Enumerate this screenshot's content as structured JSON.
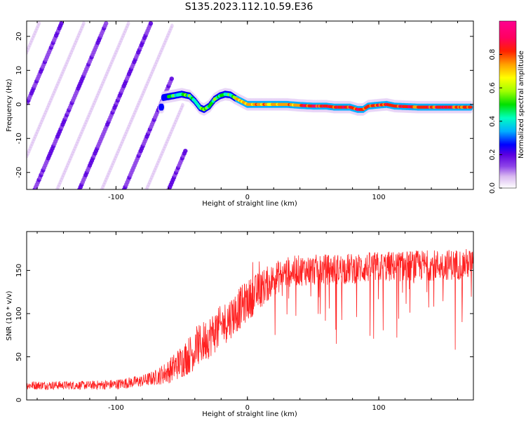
{
  "title": "S135.2023.112.10.59.E36",
  "chart_data": [
    {
      "type": "heatmap",
      "xlabel": "Height of straight line (km)",
      "ylabel": "Frequency (Hz)",
      "xlim": [
        -168,
        172
      ],
      "ylim": [
        -25,
        24.5
      ],
      "xticks": [
        -100,
        0,
        100
      ],
      "yticks": [
        -20,
        -10,
        0,
        10,
        20
      ],
      "colorbar": {
        "label": "Normalized spectral amplitude",
        "range": [
          0,
          1
        ],
        "ticks": [
          "0.0",
          "0.2",
          "0.4",
          "0.6",
          "0.8"
        ],
        "colors": [
          "#ffffff",
          "#d9b8f0",
          "#8e44e8",
          "#5b00e0",
          "#0000ff",
          "#00b0ff",
          "#00ffc0",
          "#00e000",
          "#a0ff00",
          "#ffff00",
          "#ffa000",
          "#ff2000",
          "#ff0060",
          "#ff0090"
        ]
      },
      "ridge": {
        "description_points": [
          [
            -64,
            2
          ],
          [
            -57,
            2.5
          ],
          [
            -50,
            3
          ],
          [
            -44,
            2.5
          ],
          [
            -40,
            1
          ],
          [
            -36,
            -1
          ],
          [
            -33,
            -1.5
          ],
          [
            -29,
            -0.5
          ],
          [
            -25,
            1.5
          ],
          [
            -21,
            2.5
          ],
          [
            -17,
            3
          ],
          [
            -13,
            2.8
          ],
          [
            -9,
            1.8
          ],
          [
            -4,
            0.8
          ],
          [
            0,
            0
          ],
          [
            10,
            0
          ],
          [
            20,
            0
          ],
          [
            30,
            0
          ],
          [
            40,
            -0.3
          ],
          [
            50,
            -0.5
          ],
          [
            60,
            -0.5
          ],
          [
            66,
            -0.8
          ],
          [
            72,
            -0.8
          ],
          [
            78,
            -0.8
          ],
          [
            84,
            -1.5
          ],
          [
            88,
            -1.5
          ],
          [
            92,
            -0.5
          ],
          [
            100,
            -0.2
          ],
          [
            106,
            0
          ],
          [
            112,
            -0.5
          ],
          [
            130,
            -0.8
          ],
          [
            150,
            -0.8
          ],
          [
            170,
            -0.8
          ]
        ]
      },
      "aliased_stripes": {
        "x_range": [
          -168,
          -62
        ],
        "slope_hz_per_km": 0.9,
        "spacing_km": 17
      }
    },
    {
      "type": "line",
      "xlabel": "Height of straight line (km)",
      "ylabel": "SNR (10 * v/v)",
      "xlim": [
        -168,
        172
      ],
      "ylim": [
        0,
        195
      ],
      "xticks": [
        -100,
        0,
        100
      ],
      "yticks": [
        0,
        50,
        100,
        150
      ],
      "color": "#ff2020",
      "envelope": {
        "x": [
          -168,
          -140,
          -120,
          -100,
          -80,
          -70,
          -60,
          -50,
          -40,
          -30,
          -20,
          -10,
          0,
          10,
          20,
          30,
          40,
          60,
          80,
          100,
          120,
          140,
          160,
          172
        ],
        "y_mean": [
          17,
          17,
          17,
          18,
          22,
          26,
          33,
          45,
          58,
          72,
          85,
          100,
          115,
          128,
          140,
          148,
          150,
          151,
          152,
          154,
          155,
          156,
          157,
          158
        ],
        "y_spread": [
          5,
          5,
          5,
          6,
          7,
          9,
          14,
          20,
          24,
          25,
          25,
          25,
          24,
          22,
          20,
          18,
          18,
          18,
          18,
          18,
          18,
          18,
          18,
          18
        ]
      }
    }
  ]
}
